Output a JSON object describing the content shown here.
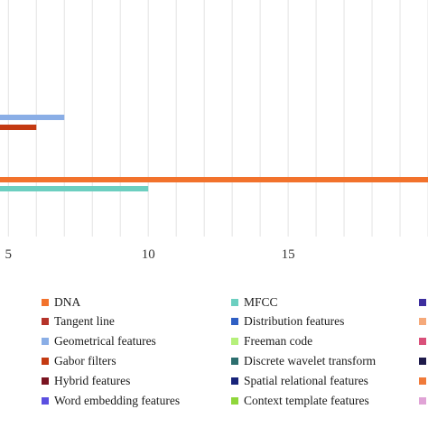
{
  "chart_data": {
    "type": "bar",
    "orientation": "horizontal",
    "grid": true,
    "xlim": [
      4.7,
      20.0
    ],
    "x_ticks": [
      5,
      10,
      15
    ],
    "x_tick_labels": [
      "5",
      "10",
      "15"
    ],
    "bars": [
      {
        "series": "Geometrical features",
        "value": 7.0
      },
      {
        "series": "Gabor filters",
        "value": 6.0
      },
      {
        "series": "DNA",
        "value": 20.0
      },
      {
        "series": "MFCC",
        "value": 10.0
      }
    ],
    "legend_placement": "bottom",
    "legend": [
      {
        "label": "DNA",
        "color": "#F2722C"
      },
      {
        "label": "Tangent line",
        "color": "#B5332A"
      },
      {
        "label": "Geometrical features",
        "color": "#8AAEE6"
      },
      {
        "label": "Gabor filters",
        "color": "#C43A12"
      },
      {
        "label": "Hybrid features",
        "color": "#7A1420"
      },
      {
        "label": "Word embedding features",
        "color": "#5B4FE0"
      },
      {
        "label": "MFCC",
        "color": "#6CCFC0"
      },
      {
        "label": "Distribution features",
        "color": "#2F5FC4"
      },
      {
        "label": "Freeman code",
        "color": "#B5F07A"
      },
      {
        "label": "Discrete wavelet transform",
        "color": "#2C6E6E"
      },
      {
        "label": "Spatial relational features",
        "color": "#17237A"
      },
      {
        "label": "Context template features",
        "color": "#8FD63A"
      }
    ],
    "legend_col3_colors": [
      "#3D2E9E",
      "#F5A97A",
      "#D9507A",
      "#1E1A4A",
      "#F07A3A",
      "#E0A3D6"
    ]
  }
}
